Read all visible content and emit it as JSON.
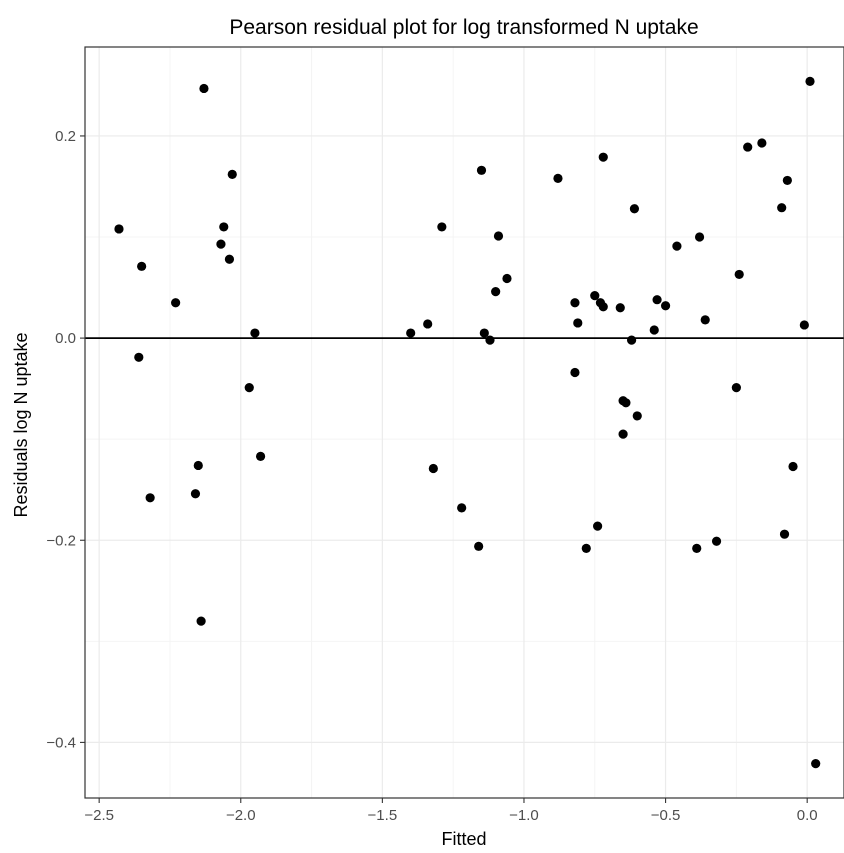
{
  "chart_data": {
    "type": "scatter",
    "title": "Pearson residual plot for log transformed N uptake",
    "xlabel": "Fitted",
    "ylabel": "Residuals log N uptake",
    "xlim": [
      -2.55,
      0.13
    ],
    "ylim": [
      -0.455,
      0.288
    ],
    "x_ticks": [
      -2.5,
      -2.0,
      -1.5,
      -1.0,
      -0.5,
      0.0
    ],
    "x_tick_labels": [
      "−2.5",
      "−2.0",
      "−1.5",
      "−1.0",
      "−0.5",
      "0.0"
    ],
    "y_ticks": [
      -0.4,
      -0.2,
      0.0,
      0.2
    ],
    "y_tick_labels": [
      "−0.4",
      "−0.2",
      "0.0",
      "0.2"
    ],
    "reference_line_y": 0,
    "grid": true,
    "theme": "bw",
    "colors": {
      "point": "#000000",
      "grid_major": "#ebebeb",
      "grid_minor": "#f4f4f4",
      "border": "#333333",
      "refline": "#000000"
    },
    "points": [
      {
        "x": -2.43,
        "y": 0.108
      },
      {
        "x": -2.35,
        "y": 0.071
      },
      {
        "x": -2.36,
        "y": -0.019
      },
      {
        "x": -2.32,
        "y": -0.158
      },
      {
        "x": -2.23,
        "y": 0.035
      },
      {
        "x": -2.13,
        "y": 0.247
      },
      {
        "x": -2.03,
        "y": 0.162
      },
      {
        "x": -2.06,
        "y": 0.11
      },
      {
        "x": -2.07,
        "y": 0.093
      },
      {
        "x": -2.04,
        "y": 0.078
      },
      {
        "x": -1.95,
        "y": 0.005
      },
      {
        "x": -1.97,
        "y": -0.049
      },
      {
        "x": -1.93,
        "y": -0.117
      },
      {
        "x": -2.15,
        "y": -0.126
      },
      {
        "x": -2.16,
        "y": -0.154
      },
      {
        "x": -2.14,
        "y": -0.28
      },
      {
        "x": -1.4,
        "y": 0.005
      },
      {
        "x": -1.34,
        "y": 0.014
      },
      {
        "x": -1.29,
        "y": 0.11
      },
      {
        "x": -1.32,
        "y": -0.129
      },
      {
        "x": -1.22,
        "y": -0.168
      },
      {
        "x": -1.16,
        "y": -0.206
      },
      {
        "x": -1.15,
        "y": 0.166
      },
      {
        "x": -1.14,
        "y": 0.005
      },
      {
        "x": -1.12,
        "y": -0.002
      },
      {
        "x": -1.1,
        "y": 0.046
      },
      {
        "x": -1.09,
        "y": 0.101
      },
      {
        "x": -1.06,
        "y": 0.059
      },
      {
        "x": -0.88,
        "y": 0.158
      },
      {
        "x": -0.82,
        "y": 0.035
      },
      {
        "x": -0.81,
        "y": 0.015
      },
      {
        "x": -0.82,
        "y": -0.034
      },
      {
        "x": -0.78,
        "y": -0.208
      },
      {
        "x": -0.75,
        "y": 0.042
      },
      {
        "x": -0.73,
        "y": 0.035
      },
      {
        "x": -0.72,
        "y": 0.031
      },
      {
        "x": -0.72,
        "y": 0.179
      },
      {
        "x": -0.74,
        "y": -0.186
      },
      {
        "x": -0.66,
        "y": 0.03
      },
      {
        "x": -0.65,
        "y": -0.062
      },
      {
        "x": -0.64,
        "y": -0.064
      },
      {
        "x": -0.65,
        "y": -0.095
      },
      {
        "x": -0.62,
        "y": -0.002
      },
      {
        "x": -0.61,
        "y": 0.128
      },
      {
        "x": -0.6,
        "y": -0.077
      },
      {
        "x": -0.54,
        "y": 0.008
      },
      {
        "x": -0.53,
        "y": 0.038
      },
      {
        "x": -0.5,
        "y": 0.032
      },
      {
        "x": -0.46,
        "y": 0.091
      },
      {
        "x": -0.38,
        "y": 0.1
      },
      {
        "x": -0.36,
        "y": 0.018
      },
      {
        "x": -0.39,
        "y": -0.208
      },
      {
        "x": -0.32,
        "y": -0.201
      },
      {
        "x": -0.25,
        "y": -0.049
      },
      {
        "x": -0.24,
        "y": 0.063
      },
      {
        "x": -0.21,
        "y": 0.189
      },
      {
        "x": -0.16,
        "y": 0.193
      },
      {
        "x": -0.09,
        "y": 0.129
      },
      {
        "x": -0.07,
        "y": 0.156
      },
      {
        "x": -0.08,
        "y": -0.194
      },
      {
        "x": -0.05,
        "y": -0.127
      },
      {
        "x": -0.01,
        "y": 0.013
      },
      {
        "x": 0.01,
        "y": 0.254
      },
      {
        "x": 0.03,
        "y": -0.421
      }
    ]
  }
}
